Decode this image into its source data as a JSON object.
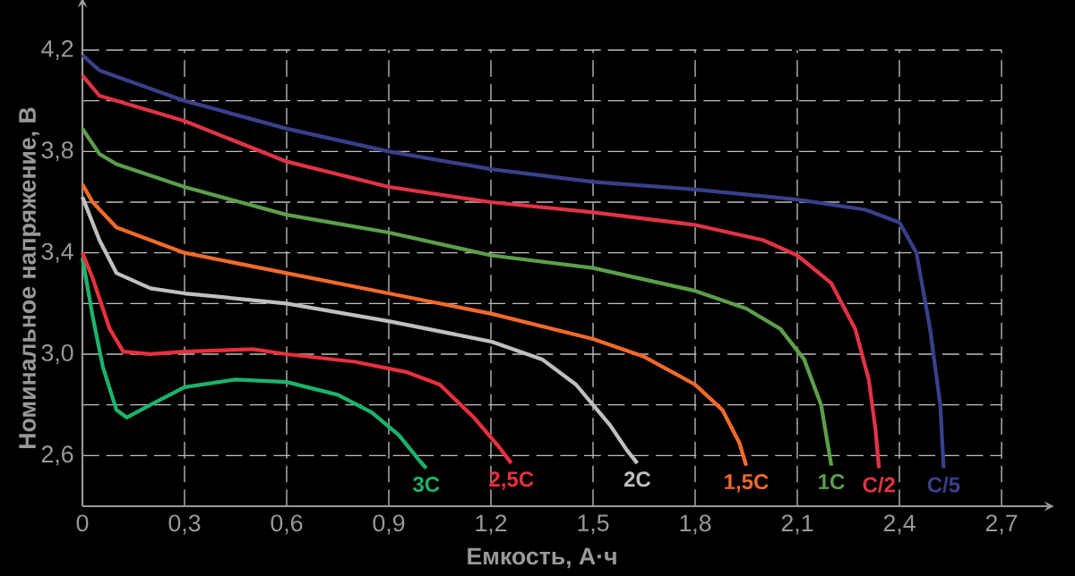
{
  "chart_data": {
    "type": "line",
    "xlabel": "Емкость, А·ч",
    "ylabel": "Номинальное напряжение, В",
    "xlim": [
      0,
      2.7
    ],
    "ylim": [
      2.4,
      4.2
    ],
    "xticks": [
      0,
      {
        "value": 0.3,
        "label": "0,3"
      },
      {
        "value": 0.6,
        "label": "0,6"
      },
      {
        "value": 0.9,
        "label": "0,9"
      },
      {
        "value": 1.2,
        "label": "1,2"
      },
      {
        "value": 1.5,
        "label": "1,5"
      },
      {
        "value": 1.8,
        "label": "1,8"
      },
      {
        "value": 2.1,
        "label": "2,1"
      },
      {
        "value": 2.4,
        "label": "2,4"
      },
      {
        "value": 2.7,
        "label": "2,7"
      }
    ],
    "yticks": [
      {
        "value": 2.6,
        "label": "2,6"
      },
      {
        "value": 2.8,
        "label": null
      },
      {
        "value": 3.0,
        "label": "3,0"
      },
      {
        "value": 3.2,
        "label": null
      },
      {
        "value": 3.4,
        "label": "3,4"
      },
      {
        "value": 3.6,
        "label": null
      },
      {
        "value": 3.8,
        "label": "3,8"
      },
      {
        "value": 4.0,
        "label": null
      },
      {
        "value": 4.2,
        "label": "4,2"
      }
    ],
    "grid": true,
    "marker": "none",
    "line_style": "solid",
    "series": [
      {
        "name": "3C",
        "color": "#1db36a",
        "x": [
          0,
          0.03,
          0.06,
          0.1,
          0.13,
          0.2,
          0.3,
          0.45,
          0.6,
          0.75,
          0.85,
          0.93,
          0.99,
          1.01
        ],
        "values": [
          3.38,
          3.15,
          2.95,
          2.78,
          2.75,
          2.8,
          2.87,
          2.9,
          2.89,
          2.84,
          2.77,
          2.68,
          2.58,
          2.55
        ]
      },
      {
        "name": "2,5C",
        "color": "#e8303d",
        "x": [
          0,
          0.03,
          0.08,
          0.12,
          0.2,
          0.3,
          0.5,
          0.6,
          0.8,
          0.95,
          1.05,
          1.15,
          1.22,
          1.26
        ],
        "values": [
          3.4,
          3.3,
          3.1,
          3.01,
          3.0,
          3.01,
          3.02,
          3.0,
          2.97,
          2.93,
          2.88,
          2.75,
          2.64,
          2.57
        ]
      },
      {
        "name": "2C",
        "color": "#c0c0c0",
        "x": [
          0,
          0.05,
          0.1,
          0.2,
          0.3,
          0.6,
          0.9,
          1.2,
          1.35,
          1.45,
          1.55,
          1.6,
          1.63
        ],
        "values": [
          3.62,
          3.45,
          3.32,
          3.26,
          3.24,
          3.2,
          3.13,
          3.05,
          2.98,
          2.88,
          2.72,
          2.62,
          2.57
        ]
      },
      {
        "name": "1,5C",
        "color": "#f26a2a",
        "x": [
          0,
          0.03,
          0.1,
          0.3,
          0.6,
          0.9,
          1.2,
          1.5,
          1.65,
          1.8,
          1.88,
          1.93,
          1.95
        ],
        "values": [
          3.67,
          3.6,
          3.5,
          3.4,
          3.32,
          3.24,
          3.16,
          3.06,
          2.99,
          2.88,
          2.78,
          2.65,
          2.56
        ]
      },
      {
        "name": "1C",
        "color": "#5d9e4a",
        "x": [
          0,
          0.05,
          0.1,
          0.3,
          0.6,
          0.9,
          1.2,
          1.5,
          1.8,
          1.95,
          2.05,
          2.12,
          2.17,
          2.2
        ],
        "values": [
          3.89,
          3.79,
          3.75,
          3.66,
          3.55,
          3.48,
          3.39,
          3.34,
          3.25,
          3.18,
          3.1,
          2.98,
          2.8,
          2.56
        ]
      },
      {
        "name": "C/2",
        "color": "#e03345",
        "x": [
          0,
          0.05,
          0.3,
          0.6,
          0.9,
          1.2,
          1.5,
          1.8,
          2.0,
          2.1,
          2.2,
          2.27,
          2.31,
          2.33,
          2.34
        ],
        "values": [
          4.1,
          4.02,
          3.92,
          3.76,
          3.66,
          3.6,
          3.56,
          3.51,
          3.45,
          3.39,
          3.28,
          3.1,
          2.9,
          2.7,
          2.55
        ]
      },
      {
        "name": "C/5",
        "color": "#3a3f8a",
        "x": [
          0,
          0.05,
          0.3,
          0.6,
          0.9,
          1.2,
          1.5,
          1.8,
          2.1,
          2.3,
          2.4,
          2.45,
          2.49,
          2.52,
          2.53
        ],
        "values": [
          4.18,
          4.12,
          4.0,
          3.89,
          3.8,
          3.73,
          3.68,
          3.65,
          3.61,
          3.57,
          3.52,
          3.4,
          3.1,
          2.8,
          2.55
        ]
      }
    ]
  }
}
